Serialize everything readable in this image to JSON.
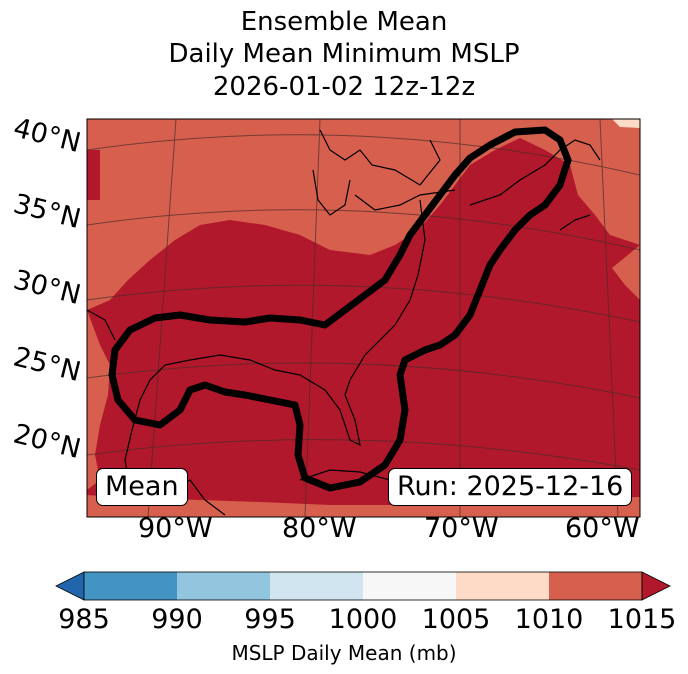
{
  "title": {
    "line1": "Ensemble Mean",
    "line2": "Daily Mean Minimum MSLP",
    "line3": "2026-01-02 12z-12z"
  },
  "map": {
    "lat_labels": [
      "40°N",
      "35°N",
      "30°N",
      "25°N",
      "20°N"
    ],
    "lon_labels": [
      "90°W",
      "80°W",
      "70°W",
      "60°W"
    ],
    "panel_label": "Mean",
    "run_label": "Run: 2025-12-16",
    "field_colors": {
      "low": "#b2182b",
      "high": "#d6604d",
      "max": "#fddbc7"
    }
  },
  "colorbar": {
    "ticks": [
      "985",
      "990",
      "995",
      "1000",
      "1005",
      "1010",
      "1015"
    ],
    "colors": [
      "#2166ac",
      "#4393c3",
      "#92c5de",
      "#d1e5f0",
      "#f7f7f7",
      "#fddbc7",
      "#d6604d",
      "#b2182b"
    ],
    "label": "MSLP Daily Mean (mb)"
  }
}
